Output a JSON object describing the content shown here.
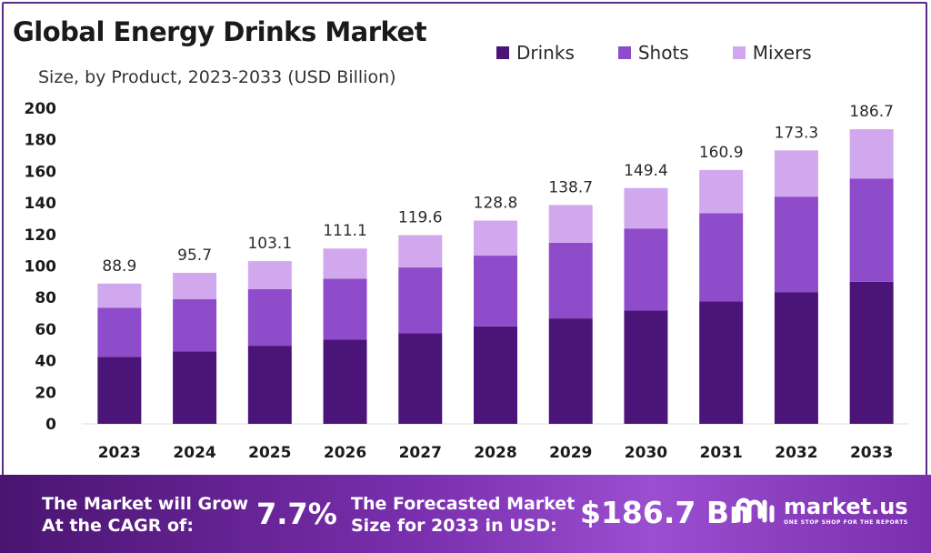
{
  "header": {
    "title": "Global Energy Drinks Market",
    "subtitle": "Size, by Product, 2023-2033 (USD Billion)"
  },
  "chart_data": {
    "type": "bar",
    "stacked": true,
    "title": "Global Energy Drinks Market",
    "subtitle": "Size, by Product, 2023-2033 (USD Billion)",
    "categories": [
      "2023",
      "2024",
      "2025",
      "2026",
      "2027",
      "2028",
      "2029",
      "2030",
      "2031",
      "2032",
      "2033"
    ],
    "series": [
      {
        "name": "Drinks",
        "color": "#4b1478",
        "values": [
          42.5,
          45.8,
          49.5,
          53.3,
          57.5,
          61.8,
          66.8,
          71.8,
          77.5,
          83.5,
          90.0
        ]
      },
      {
        "name": "Shots",
        "color": "#8e4ccb",
        "values": [
          31.0,
          33.3,
          35.9,
          38.7,
          41.6,
          44.8,
          48.0,
          52.0,
          56.0,
          60.5,
          65.5
        ]
      },
      {
        "name": "Mixers",
        "color": "#d1a8ee",
        "values": [
          15.4,
          16.6,
          17.7,
          19.1,
          20.5,
          22.2,
          23.9,
          25.6,
          27.4,
          29.3,
          31.2
        ]
      }
    ],
    "totals": [
      "88.9",
      "95.7",
      "103.1",
      "111.1",
      "119.6",
      "128.8",
      "138.7",
      "149.4",
      "160.9",
      "173.3",
      "186.7"
    ],
    "y_ticks": [
      "0",
      "20",
      "40",
      "60",
      "80",
      "100",
      "120",
      "140",
      "160",
      "180",
      "200"
    ],
    "ylim": [
      0,
      200
    ],
    "grid": false,
    "legend_position": "top-right"
  },
  "footer": {
    "cagr_label": "The Market will Grow At the CAGR of:",
    "cagr_value": "7.7%",
    "forecast_label": "The Forecasted Market Size for 2033 in USD:",
    "forecast_value": "$186.7 Bn",
    "brand_name": "market.us",
    "brand_tagline": "ONE STOP SHOP FOR THE REPORTS"
  }
}
